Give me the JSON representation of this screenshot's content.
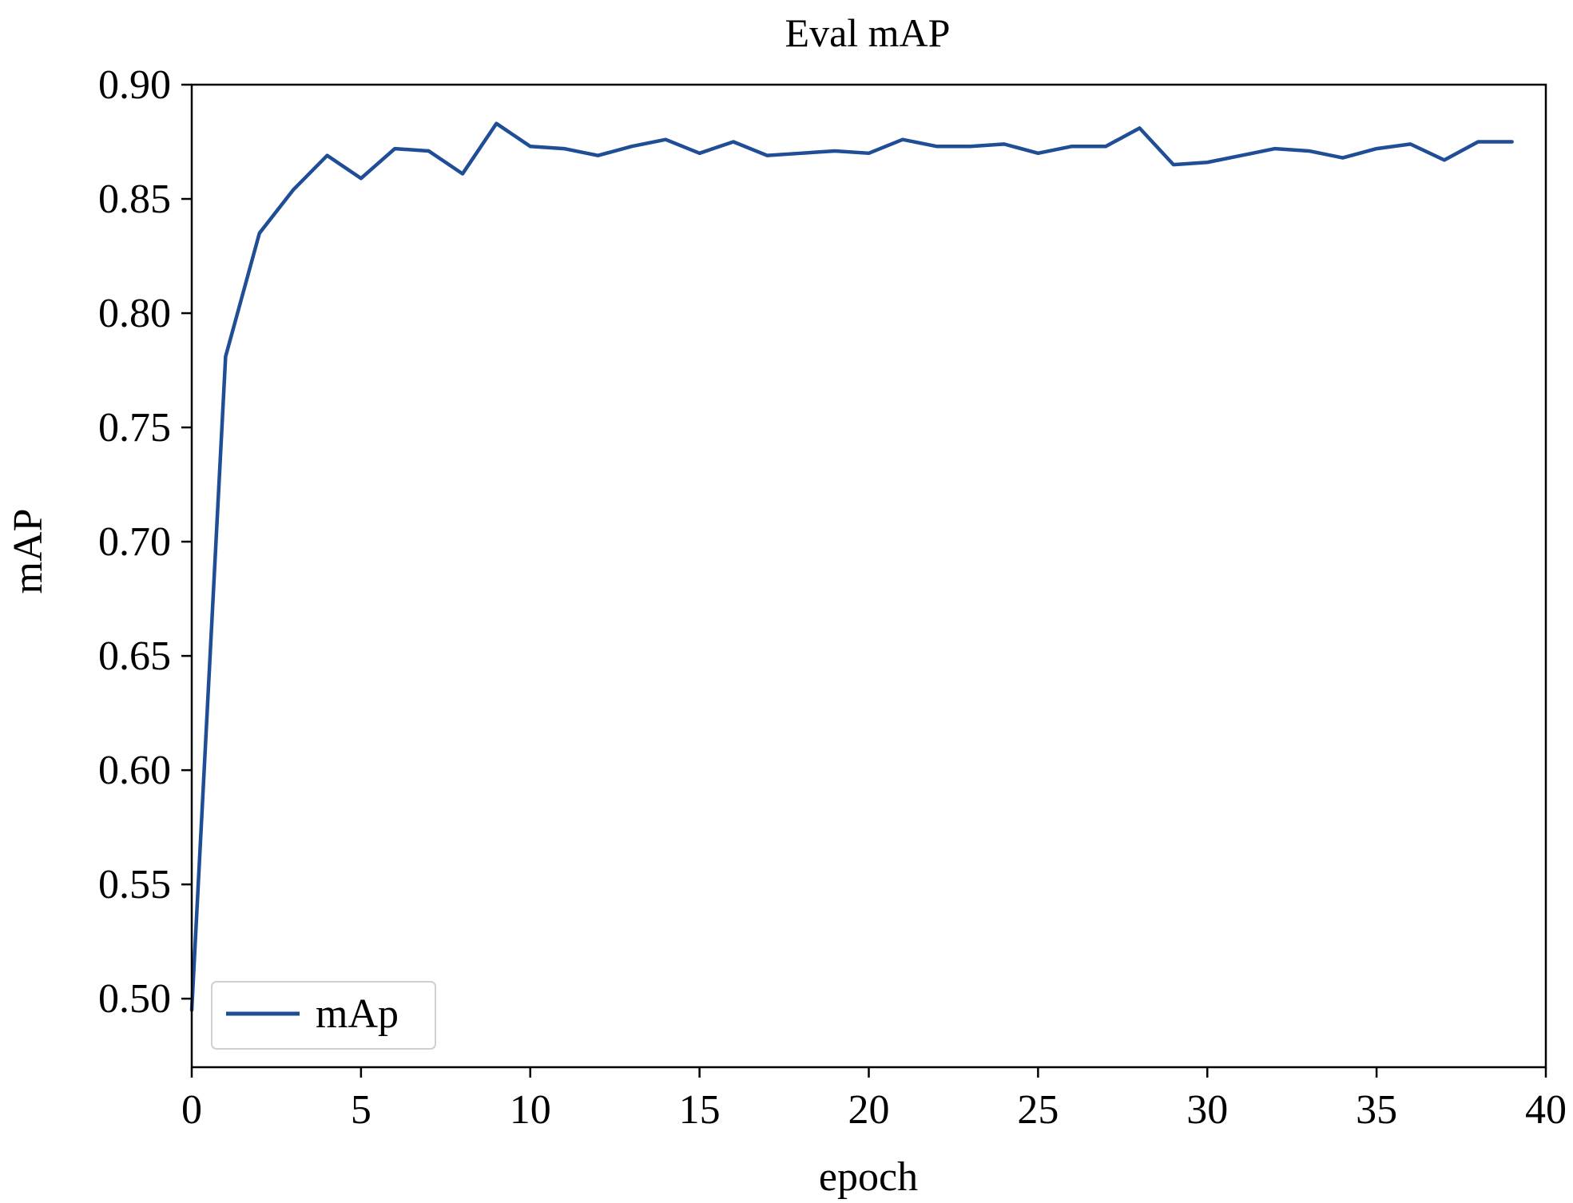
{
  "chart_data": {
    "type": "line",
    "title": "Eval mAP",
    "xlabel": "epoch",
    "ylabel": "mAP",
    "xlim": [
      0,
      40
    ],
    "ylim": [
      0.47,
      0.9
    ],
    "x_ticks": [
      "0",
      "5",
      "10",
      "15",
      "20",
      "25",
      "30",
      "35",
      "40"
    ],
    "y_ticks": [
      "0.50",
      "0.55",
      "0.60",
      "0.65",
      "0.70",
      "0.75",
      "0.80",
      "0.85",
      "0.90"
    ],
    "grid": false,
    "legend_position": "lower-left",
    "series": [
      {
        "name": "mAp",
        "color": "#1f4e96",
        "x": [
          0,
          1,
          2,
          3,
          4,
          5,
          6,
          7,
          8,
          9,
          10,
          11,
          12,
          13,
          14,
          15,
          16,
          17,
          18,
          19,
          20,
          21,
          22,
          23,
          24,
          25,
          26,
          27,
          28,
          29,
          30,
          31,
          32,
          33,
          34,
          35,
          36,
          37,
          38,
          39
        ],
        "values": [
          0.495,
          0.781,
          0.835,
          0.854,
          0.869,
          0.859,
          0.872,
          0.871,
          0.861,
          0.883,
          0.873,
          0.872,
          0.869,
          0.873,
          0.876,
          0.87,
          0.875,
          0.869,
          0.87,
          0.871,
          0.87,
          0.876,
          0.873,
          0.873,
          0.874,
          0.87,
          0.873,
          0.873,
          0.881,
          0.865,
          0.866,
          0.869,
          0.872,
          0.871,
          0.868,
          0.872,
          0.874,
          0.867,
          0.875,
          0.875
        ]
      }
    ]
  }
}
